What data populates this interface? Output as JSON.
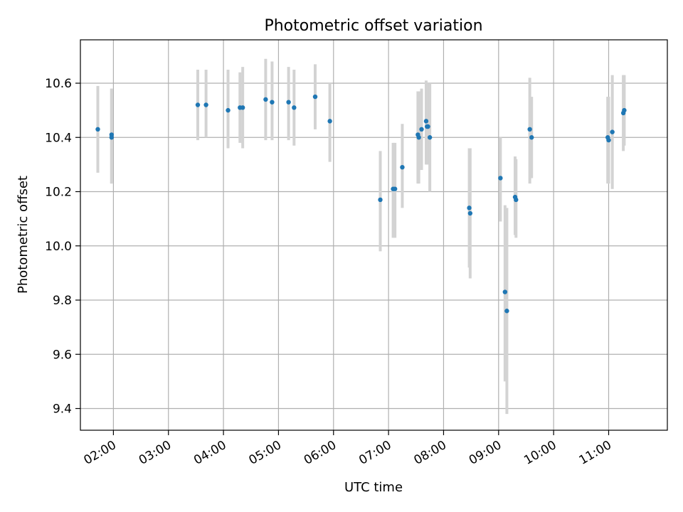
{
  "chart_data": {
    "type": "scatter",
    "title": "Photometric offset variation",
    "xlabel": "UTC time",
    "ylabel": "Photometric offset",
    "x_unit": "UTC time (HH:MM)",
    "xlim": [
      "01:24",
      "12:04"
    ],
    "ylim": [
      9.32,
      10.76
    ],
    "x_ticks": [
      "02:00",
      "03:00",
      "04:00",
      "05:00",
      "06:00",
      "07:00",
      "08:00",
      "09:00",
      "10:00",
      "11:00"
    ],
    "y_ticks": [
      9.4,
      9.6,
      9.8,
      10.0,
      10.2,
      10.4,
      10.6
    ],
    "grid": true,
    "colors": {
      "point": "#1f77b4",
      "errorbar": "#d3d3d3",
      "grid": "#b0b0b0"
    },
    "points": [
      {
        "x": "01:43",
        "y": 10.43,
        "yerr_low": 10.27,
        "yerr_high": 10.59
      },
      {
        "x": "01:58",
        "y": 10.41,
        "yerr_low": 10.23,
        "yerr_high": 10.58
      },
      {
        "x": "01:58",
        "y": 10.4,
        "yerr_low": 10.23,
        "yerr_high": 10.58
      },
      {
        "x": "03:32",
        "y": 10.52,
        "yerr_low": 10.39,
        "yerr_high": 10.65
      },
      {
        "x": "03:41",
        "y": 10.52,
        "yerr_low": 10.4,
        "yerr_high": 10.65
      },
      {
        "x": "04:05",
        "y": 10.5,
        "yerr_low": 10.36,
        "yerr_high": 10.65
      },
      {
        "x": "04:18",
        "y": 10.51,
        "yerr_low": 10.38,
        "yerr_high": 10.64
      },
      {
        "x": "04:21",
        "y": 10.51,
        "yerr_low": 10.36,
        "yerr_high": 10.66
      },
      {
        "x": "04:46",
        "y": 10.54,
        "yerr_low": 10.39,
        "yerr_high": 10.69
      },
      {
        "x": "04:53",
        "y": 10.53,
        "yerr_low": 10.39,
        "yerr_high": 10.68
      },
      {
        "x": "05:11",
        "y": 10.53,
        "yerr_low": 10.39,
        "yerr_high": 10.66
      },
      {
        "x": "05:17",
        "y": 10.51,
        "yerr_low": 10.37,
        "yerr_high": 10.65
      },
      {
        "x": "05:40",
        "y": 10.55,
        "yerr_low": 10.43,
        "yerr_high": 10.67
      },
      {
        "x": "05:56",
        "y": 10.46,
        "yerr_low": 10.31,
        "yerr_high": 10.6
      },
      {
        "x": "06:51",
        "y": 10.17,
        "yerr_low": 9.98,
        "yerr_high": 10.35
      },
      {
        "x": "07:05",
        "y": 10.21,
        "yerr_low": 10.03,
        "yerr_high": 10.38
      },
      {
        "x": "07:07",
        "y": 10.21,
        "yerr_low": 10.03,
        "yerr_high": 10.38
      },
      {
        "x": "07:15",
        "y": 10.29,
        "yerr_low": 10.14,
        "yerr_high": 10.45
      },
      {
        "x": "07:32",
        "y": 10.41,
        "yerr_low": 10.23,
        "yerr_high": 10.57
      },
      {
        "x": "07:33",
        "y": 10.4,
        "yerr_low": 10.23,
        "yerr_high": 10.57
      },
      {
        "x": "07:36",
        "y": 10.43,
        "yerr_low": 10.28,
        "yerr_high": 10.58
      },
      {
        "x": "07:41",
        "y": 10.46,
        "yerr_low": 10.3,
        "yerr_high": 10.61
      },
      {
        "x": "07:42",
        "y": 10.44,
        "yerr_low": 10.3,
        "yerr_high": 10.6
      },
      {
        "x": "07:43",
        "y": 10.44,
        "yerr_low": 10.3,
        "yerr_high": 10.6
      },
      {
        "x": "07:45",
        "y": 10.4,
        "yerr_low": 10.2,
        "yerr_high": 10.6
      },
      {
        "x": "08:28",
        "y": 10.14,
        "yerr_low": 9.92,
        "yerr_high": 10.36
      },
      {
        "x": "08:29",
        "y": 10.12,
        "yerr_low": 9.88,
        "yerr_high": 10.36
      },
      {
        "x": "09:02",
        "y": 10.25,
        "yerr_low": 10.09,
        "yerr_high": 10.4
      },
      {
        "x": "09:07",
        "y": 9.83,
        "yerr_low": 9.5,
        "yerr_high": 10.15
      },
      {
        "x": "09:09",
        "y": 9.76,
        "yerr_low": 9.38,
        "yerr_high": 10.14
      },
      {
        "x": "09:18",
        "y": 10.18,
        "yerr_low": 10.04,
        "yerr_high": 10.33
      },
      {
        "x": "09:19",
        "y": 10.17,
        "yerr_low": 10.03,
        "yerr_high": 10.32
      },
      {
        "x": "09:34",
        "y": 10.43,
        "yerr_low": 10.23,
        "yerr_high": 10.62
      },
      {
        "x": "09:36",
        "y": 10.4,
        "yerr_low": 10.25,
        "yerr_high": 10.55
      },
      {
        "x": "10:59",
        "y": 10.4,
        "yerr_low": 10.23,
        "yerr_high": 10.55
      },
      {
        "x": "11:00",
        "y": 10.39,
        "yerr_low": 10.23,
        "yerr_high": 10.55
      },
      {
        "x": "11:04",
        "y": 10.42,
        "yerr_low": 10.21,
        "yerr_high": 10.63
      },
      {
        "x": "11:16",
        "y": 10.49,
        "yerr_low": 10.35,
        "yerr_high": 10.63
      },
      {
        "x": "11:17",
        "y": 10.5,
        "yerr_low": 10.37,
        "yerr_high": 10.63
      }
    ]
  }
}
